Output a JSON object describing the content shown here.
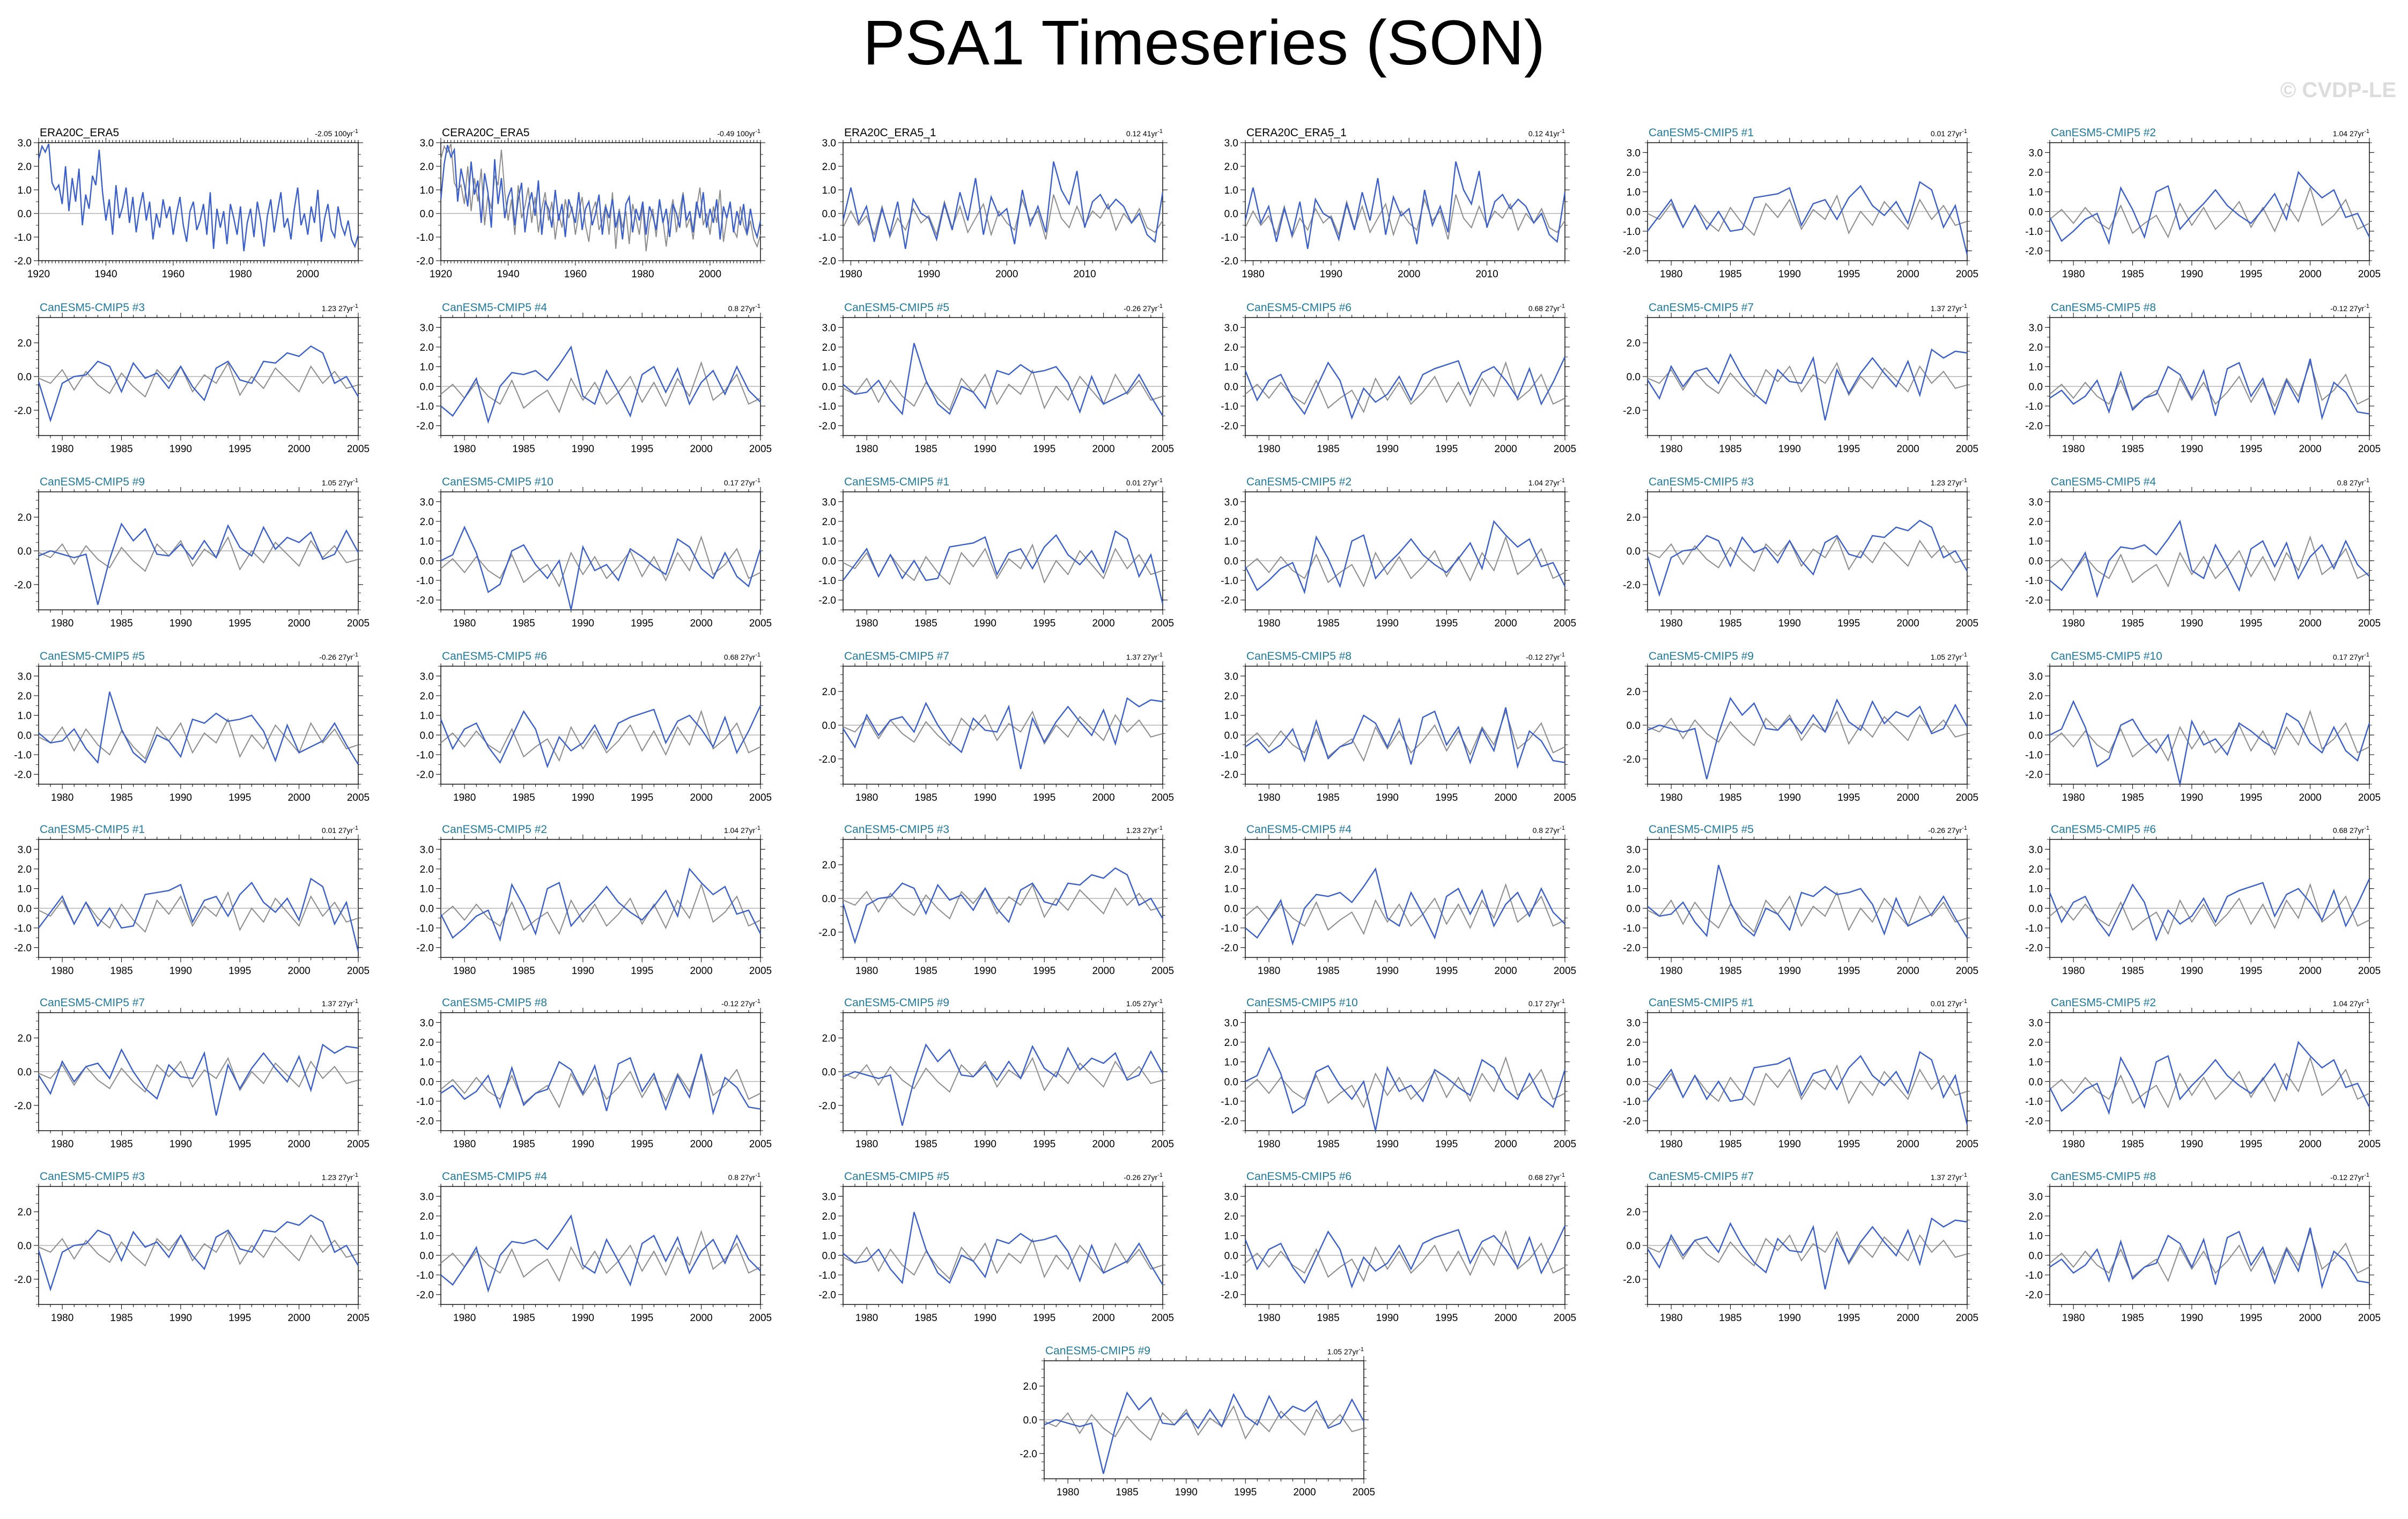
{
  "page": {
    "title": "PSA1 Timeseries (SON)",
    "watermark": "© CVDP-LE"
  },
  "colors": {
    "primary_line": "#3a5fcd",
    "reference_line": "#8c8c8c",
    "zero_line": "#b4b4b4",
    "observed_title": "#000000",
    "model_title": "#1f7a9c"
  },
  "chart_data": {
    "type": "line",
    "note_layout": "small-multiples grid, 6 columns, 43 panels",
    "panels": [
      {
        "title": "ERA20C_ERA5",
        "trend": "-2.05",
        "trend_unit": "100yr",
        "kind": "obs-long",
        "xlim": [
          1920,
          2015
        ],
        "xticks": [
          "1920",
          "1940",
          "1960",
          "1980",
          "2000"
        ],
        "ylim": [
          -2.0,
          3.0
        ],
        "yticks": [
          "3.0",
          "2.0",
          "1.0",
          "0.0",
          "-1.0",
          "-2.0"
        ]
      },
      {
        "title": "CERA20C_ERA5",
        "trend": "-0.49",
        "trend_unit": "100yr",
        "kind": "obs-long-ref",
        "xlim": [
          1920,
          2015
        ],
        "xticks": [
          "1920",
          "1940",
          "1960",
          "1980",
          "2000"
        ],
        "ylim": [
          -2.0,
          3.0
        ],
        "yticks": [
          "3.0",
          "2.0",
          "1.0",
          "0.0",
          "-1.0",
          "-2.0"
        ]
      },
      {
        "title": "ERA20C_ERA5_1",
        "trend": "0.12",
        "trend_unit": "41yr",
        "kind": "obs-short",
        "xlim": [
          1979,
          2020
        ],
        "xticks": [
          "1980",
          "1990",
          "2000",
          "2010"
        ],
        "ylim": [
          -2.0,
          3.0
        ],
        "yticks": [
          "3.0",
          "2.0",
          "1.0",
          "0.0",
          "-1.0",
          "-2.0"
        ]
      },
      {
        "title": "CERA20C_ERA5_1",
        "trend": "0.12",
        "trend_unit": "41yr",
        "kind": "obs-short",
        "xlim": [
          1979,
          2020
        ],
        "xticks": [
          "1980",
          "1990",
          "2000",
          "2010"
        ],
        "ylim": [
          -2.0,
          3.0
        ],
        "yticks": [
          "3.0",
          "2.0",
          "1.0",
          "0.0",
          "-1.0",
          "-2.0"
        ]
      },
      {
        "title": "CanESM5-CMIP5 #1",
        "trend": "0.01",
        "trend_unit": "27yr",
        "model": 1,
        "yset": "a"
      },
      {
        "title": "CanESM5-CMIP5 #2",
        "trend": "1.04",
        "trend_unit": "27yr",
        "model": 2,
        "yset": "a"
      },
      {
        "title": "CanESM5-CMIP5 #3",
        "trend": "1.23",
        "trend_unit": "27yr",
        "model": 3,
        "yset": "b"
      },
      {
        "title": "CanESM5-CMIP5 #4",
        "trend": "0.8",
        "trend_unit": "27yr",
        "model": 4,
        "yset": "a"
      },
      {
        "title": "CanESM5-CMIP5 #5",
        "trend": "-0.26",
        "trend_unit": "27yr",
        "model": 5,
        "yset": "a"
      },
      {
        "title": "CanESM5-CMIP5 #6",
        "trend": "0.68",
        "trend_unit": "27yr",
        "model": 6,
        "yset": "a"
      },
      {
        "title": "CanESM5-CMIP5 #7",
        "trend": "1.37",
        "trend_unit": "27yr",
        "model": 7,
        "yset": "b"
      },
      {
        "title": "CanESM5-CMIP5 #8",
        "trend": "-0.12",
        "trend_unit": "27yr",
        "model": 8,
        "yset": "a"
      },
      {
        "title": "CanESM5-CMIP5 #9",
        "trend": "1.05",
        "trend_unit": "27yr",
        "model": 9,
        "yset": "b"
      },
      {
        "title": "CanESM5-CMIP5 #10",
        "trend": "0.17",
        "trend_unit": "27yr",
        "model": 10,
        "yset": "a"
      },
      {
        "title": "CanESM5-CMIP5 #1",
        "trend": "0.01",
        "trend_unit": "27yr",
        "model": 1,
        "yset": "a"
      },
      {
        "title": "CanESM5-CMIP5 #2",
        "trend": "1.04",
        "trend_unit": "27yr",
        "model": 2,
        "yset": "a"
      },
      {
        "title": "CanESM5-CMIP5 #3",
        "trend": "1.23",
        "trend_unit": "27yr",
        "model": 3,
        "yset": "b"
      },
      {
        "title": "CanESM5-CMIP5 #4",
        "trend": "0.8",
        "trend_unit": "27yr",
        "model": 4,
        "yset": "a"
      },
      {
        "title": "CanESM5-CMIP5 #5",
        "trend": "-0.26",
        "trend_unit": "27yr",
        "model": 5,
        "yset": "a"
      },
      {
        "title": "CanESM5-CMIP5 #6",
        "trend": "0.68",
        "trend_unit": "27yr",
        "model": 6,
        "yset": "a"
      },
      {
        "title": "CanESM5-CMIP5 #7",
        "trend": "1.37",
        "trend_unit": "27yr",
        "model": 7,
        "yset": "b"
      },
      {
        "title": "CanESM5-CMIP5 #8",
        "trend": "-0.12",
        "trend_unit": "27yr",
        "model": 8,
        "yset": "a"
      },
      {
        "title": "CanESM5-CMIP5 #9",
        "trend": "1.05",
        "trend_unit": "27yr",
        "model": 9,
        "yset": "b"
      },
      {
        "title": "CanESM5-CMIP5 #10",
        "trend": "0.17",
        "trend_unit": "27yr",
        "model": 10,
        "yset": "a"
      },
      {
        "title": "CanESM5-CMIP5 #1",
        "trend": "0.01",
        "trend_unit": "27yr",
        "model": 1,
        "yset": "a"
      },
      {
        "title": "CanESM5-CMIP5 #2",
        "trend": "1.04",
        "trend_unit": "27yr",
        "model": 2,
        "yset": "a"
      },
      {
        "title": "CanESM5-CMIP5 #3",
        "trend": "1.23",
        "trend_unit": "27yr",
        "model": 3,
        "yset": "b"
      },
      {
        "title": "CanESM5-CMIP5 #4",
        "trend": "0.8",
        "trend_unit": "27yr",
        "model": 4,
        "yset": "a"
      },
      {
        "title": "CanESM5-CMIP5 #5",
        "trend": "-0.26",
        "trend_unit": "27yr",
        "model": 5,
        "yset": "a"
      },
      {
        "title": "CanESM5-CMIP5 #6",
        "trend": "0.68",
        "trend_unit": "27yr",
        "model": 6,
        "yset": "a"
      },
      {
        "title": "CanESM5-CMIP5 #7",
        "trend": "1.37",
        "trend_unit": "27yr",
        "model": 7,
        "yset": "b"
      },
      {
        "title": "CanESM5-CMIP5 #8",
        "trend": "-0.12",
        "trend_unit": "27yr",
        "model": 8,
        "yset": "a"
      },
      {
        "title": "CanESM5-CMIP5 #9",
        "trend": "1.05",
        "trend_unit": "27yr",
        "model": 9,
        "yset": "b"
      },
      {
        "title": "CanESM5-CMIP5 #10",
        "trend": "0.17",
        "trend_unit": "27yr",
        "model": 10,
        "yset": "a"
      },
      {
        "title": "CanESM5-CMIP5 #1",
        "trend": "0.01",
        "trend_unit": "27yr",
        "model": 1,
        "yset": "a"
      },
      {
        "title": "CanESM5-CMIP5 #2",
        "trend": "1.04",
        "trend_unit": "27yr",
        "model": 2,
        "yset": "a"
      },
      {
        "title": "CanESM5-CMIP5 #3",
        "trend": "1.23",
        "trend_unit": "27yr",
        "model": 3,
        "yset": "b"
      },
      {
        "title": "CanESM5-CMIP5 #4",
        "trend": "0.8",
        "trend_unit": "27yr",
        "model": 4,
        "yset": "a"
      },
      {
        "title": "CanESM5-CMIP5 #5",
        "trend": "-0.26",
        "trend_unit": "27yr",
        "model": 5,
        "yset": "a"
      },
      {
        "title": "CanESM5-CMIP5 #6",
        "trend": "0.68",
        "trend_unit": "27yr",
        "model": 6,
        "yset": "a"
      },
      {
        "title": "CanESM5-CMIP5 #7",
        "trend": "1.37",
        "trend_unit": "27yr",
        "model": 7,
        "yset": "b"
      },
      {
        "title": "CanESM5-CMIP5 #8",
        "trend": "-0.12",
        "trend_unit": "27yr",
        "model": 8,
        "yset": "a"
      },
      {
        "title": "CanESM5-CMIP5 #9",
        "trend": "1.05",
        "trend_unit": "27yr",
        "model": 9,
        "yset": "b"
      }
    ],
    "model_axis": {
      "xlim": [
        1978,
        2005
      ],
      "xticks": [
        "1980",
        "1985",
        "1990",
        "1995",
        "2000",
        "2005"
      ],
      "yset_a": {
        "ylim": [
          -2.5,
          3.5
        ],
        "yticks": [
          "3.0",
          "2.0",
          "1.0",
          "0.0",
          "-1.0",
          "-2.0"
        ]
      },
      "yset_b": {
        "ylim": [
          -3.5,
          3.5
        ],
        "yticks": [
          "2.0",
          "0.0",
          "-2.0"
        ]
      }
    },
    "series": {
      "obs_long_1920_2015": [
        2.3,
        2.85,
        2.6,
        2.95,
        1.3,
        1.0,
        1.2,
        0.4,
        2.0,
        0.1,
        1.5,
        0.5,
        1.9,
        -0.5,
        0.8,
        0.2,
        1.6,
        1.2,
        2.7,
        0.9,
        -0.3,
        0.6,
        -0.9,
        1.2,
        -0.2,
        0.3,
        1.1,
        -0.4,
        0.7,
        -0.8,
        0.2,
        0.9,
        -0.3,
        0.5,
        -1.1,
        0.0,
        -0.6,
        0.6,
        -0.2,
        0.3,
        -0.9,
        0.0,
        0.7,
        -0.5,
        -1.2,
        0.1,
        0.5,
        -0.7,
        -0.3,
        0.4,
        -0.9,
        0.9,
        -1.5,
        0.2,
        -0.6,
        0.1,
        -1.3,
        0.4,
        -0.2,
        -0.9,
        0.3,
        -1.6,
        -0.4,
        0.2,
        -1.0,
        0.5,
        -0.3,
        -1.4,
        -0.1,
        0.6,
        -0.8,
        0.1,
        0.9,
        -0.6,
        -0.2,
        -1.1,
        0.2,
        1.1,
        -0.5,
        0.0,
        -0.9,
        0.3,
        -0.4,
        1.0,
        -1.2,
        -0.2,
        0.4,
        -0.7,
        -1.0,
        0.3,
        -0.5,
        -0.9,
        -0.3,
        -1.1,
        -1.4,
        -0.9
      ],
      "obs_long_ref_1920_2015": [
        0.6,
        2.1,
        2.9,
        2.4,
        2.7,
        0.5,
        1.9,
        1.2,
        0.3,
        2.2,
        0.8,
        1.4,
        -0.4,
        1.7,
        0.9,
        -0.6,
        2.3,
        0.4,
        1.5,
        -0.2,
        0.7,
        1.1,
        -0.5,
        0.6,
        1.3,
        -0.8,
        0.3,
        0.9,
        -0.1,
        1.4,
        -0.9,
        0.5,
        0.2,
        -0.6,
        1.0,
        -0.3,
        0.4,
        -1.0,
        0.6,
        0.1,
        -0.4,
        0.9,
        -0.7,
        0.2,
        0.5,
        -0.5,
        0.0,
        0.8,
        -0.9,
        0.3,
        -0.2,
        0.6,
        -0.6,
        0.1,
        -1.1,
        0.4,
        0.7,
        -0.8,
        0.2,
        -0.3,
        0.5,
        -0.9,
        0.3,
        -0.1,
        -0.7,
        0.6,
        -0.4,
        0.2,
        -1.0,
        0.4,
        0.0,
        -0.6,
        0.8,
        -0.3,
        0.1,
        -0.8,
        0.5,
        -0.2,
        0.9,
        -0.6,
        0.2,
        -0.4,
        0.6,
        -1.1,
        0.3,
        -0.2,
        0.5,
        -0.8,
        0.1,
        -0.5,
        0.4,
        -0.9,
        0.2,
        -0.6,
        -1.0,
        -0.3
      ],
      "obs_short_1979_2020": [
        -0.3,
        1.1,
        -0.4,
        0.3,
        -1.2,
        0.2,
        -0.9,
        0.5,
        -1.5,
        0.6,
        0.0,
        -0.2,
        -1.1,
        0.4,
        -0.7,
        0.9,
        -0.3,
        1.5,
        -0.9,
        0.7,
        -0.1,
        0.2,
        -1.3,
        1.0,
        -0.5,
        0.3,
        -0.8,
        2.2,
        1.0,
        0.4,
        1.8,
        -0.6,
        0.5,
        0.8,
        0.2,
        0.6,
        0.3,
        -0.4,
        0.0,
        -0.9,
        -1.2,
        0.9
      ],
      "obs_short_ref_1979_2020": [
        -0.6,
        0.1,
        -0.5,
        -0.1,
        -0.9,
        0.3,
        -1.0,
        -0.2,
        -0.7,
        0.2,
        -0.4,
        -0.1,
        -0.9,
        0.5,
        -0.6,
        0.3,
        -0.8,
        -0.2,
        0.4,
        -0.9,
        0.1,
        -0.4,
        -0.7,
        0.6,
        -0.3,
        0.1,
        -1.1,
        0.8,
        -0.2,
        -0.6,
        0.3,
        -0.5,
        0.1,
        -0.2,
        0.4,
        -0.7,
        0.0,
        -0.4,
        0.2,
        -0.6,
        -0.8,
        -0.3
      ],
      "model_runs_1978_2005": [
        [
          -1.0,
          -0.2,
          0.6,
          -0.8,
          0.3,
          -0.9,
          0.0,
          -1.0,
          -0.9,
          0.7,
          0.8,
          0.9,
          1.2,
          -0.7,
          0.4,
          0.6,
          -0.4,
          0.7,
          1.3,
          0.3,
          -0.2,
          0.5,
          -0.6,
          1.5,
          1.1,
          -0.8,
          0.3,
          -2.2
        ],
        [
          -0.3,
          -1.5,
          -1.0,
          -0.4,
          -0.1,
          -1.6,
          1.2,
          0.1,
          -1.3,
          1.0,
          1.3,
          -0.9,
          -0.2,
          0.4,
          1.1,
          0.3,
          -0.2,
          -0.6,
          0.1,
          0.9,
          -0.4,
          2.0,
          1.3,
          0.7,
          1.1,
          -0.3,
          -0.1,
          -1.3
        ],
        [
          -0.3,
          -2.6,
          -0.4,
          0.0,
          0.1,
          0.9,
          0.6,
          -0.9,
          0.8,
          -0.1,
          0.2,
          -0.7,
          0.6,
          -0.6,
          -1.4,
          0.5,
          0.9,
          -0.2,
          -0.4,
          0.9,
          0.8,
          1.4,
          1.2,
          1.8,
          1.4,
          -0.4,
          0.0,
          -1.2
        ],
        [
          -1.0,
          -1.5,
          -0.6,
          0.4,
          -1.8,
          0.0,
          0.7,
          0.6,
          0.8,
          0.3,
          1.1,
          2.0,
          -0.5,
          -0.9,
          0.8,
          -0.3,
          -1.5,
          0.6,
          1.0,
          -0.3,
          0.9,
          -0.9,
          0.2,
          0.8,
          -0.4,
          1.0,
          -0.2,
          -0.8
        ],
        [
          0.1,
          -0.4,
          -0.3,
          0.3,
          -0.7,
          -1.4,
          2.2,
          0.3,
          -0.9,
          -1.4,
          0.0,
          -0.3,
          -1.1,
          0.8,
          0.6,
          1.1,
          0.7,
          0.8,
          1.0,
          0.2,
          -1.3,
          0.5,
          -0.9,
          -0.6,
          -0.3,
          0.6,
          -0.5,
          -1.5
        ],
        [
          0.8,
          -0.7,
          0.3,
          0.6,
          -0.6,
          -1.4,
          -0.1,
          1.2,
          0.3,
          -1.6,
          -0.1,
          -0.8,
          -0.4,
          0.5,
          -0.7,
          0.6,
          0.9,
          1.1,
          1.3,
          -0.4,
          0.7,
          1.0,
          0.3,
          -0.6,
          0.9,
          -0.9,
          0.2,
          1.5
        ],
        [
          -0.2,
          -1.3,
          0.6,
          -0.6,
          0.3,
          0.5,
          -0.4,
          1.3,
          0.0,
          -1.0,
          -1.6,
          0.4,
          -0.3,
          -0.4,
          1.1,
          -2.6,
          0.4,
          -1.0,
          0.2,
          1.1,
          0.2,
          -0.6,
          0.9,
          -1.1,
          1.6,
          1.1,
          1.5,
          1.4
        ],
        [
          -0.6,
          -0.2,
          -0.9,
          -0.5,
          0.3,
          -1.3,
          0.7,
          -1.2,
          -0.6,
          -0.4,
          1.0,
          0.6,
          -0.6,
          0.8,
          -1.5,
          0.9,
          1.2,
          -0.5,
          0.4,
          -1.4,
          0.3,
          -0.8,
          1.4,
          -1.6,
          0.2,
          -0.3,
          -1.3,
          -1.4
        ],
        [
          -0.3,
          0.0,
          -0.2,
          -0.4,
          -0.2,
          -3.2,
          -0.5,
          1.6,
          0.6,
          1.3,
          -0.2,
          -0.3,
          0.4,
          -0.5,
          0.6,
          -0.4,
          1.5,
          0.2,
          -0.3,
          1.4,
          0.1,
          0.8,
          0.5,
          1.1,
          -0.5,
          -0.2,
          1.2,
          -0.1
        ],
        [
          0.0,
          0.3,
          1.7,
          0.4,
          -1.6,
          -1.2,
          0.5,
          0.8,
          -0.2,
          -0.9,
          0.0,
          -2.5,
          0.7,
          -0.5,
          -0.2,
          -1.0,
          0.6,
          0.2,
          -0.3,
          -0.7,
          1.1,
          0.7,
          -0.4,
          -0.9,
          0.4,
          -0.8,
          -1.3,
          0.6
        ]
      ],
      "model_ref_1978_2005": [
        [
          -0.4,
          0.1,
          -0.6,
          0.2,
          -0.5,
          -0.9,
          0.3,
          -1.1,
          -0.6,
          -0.2,
          -1.3,
          0.4,
          -0.7,
          0.2,
          -0.9,
          -0.3,
          0.5,
          -0.8,
          0.2,
          -1.0,
          0.4,
          -0.5,
          1.2,
          -0.7,
          -0.2,
          0.6,
          -0.9,
          -0.6
        ],
        [
          -0.1,
          -0.4,
          0.4,
          -0.8,
          0.3,
          -0.5,
          -1.0,
          0.2,
          -0.6,
          -1.2,
          0.4,
          -0.3,
          0.6,
          -0.9,
          0.1,
          -0.4,
          0.8,
          -1.1,
          0.0,
          -0.7,
          0.5,
          -0.2,
          -0.9,
          0.6,
          -0.4,
          0.3,
          -0.7,
          -0.5
        ]
      ]
    }
  }
}
